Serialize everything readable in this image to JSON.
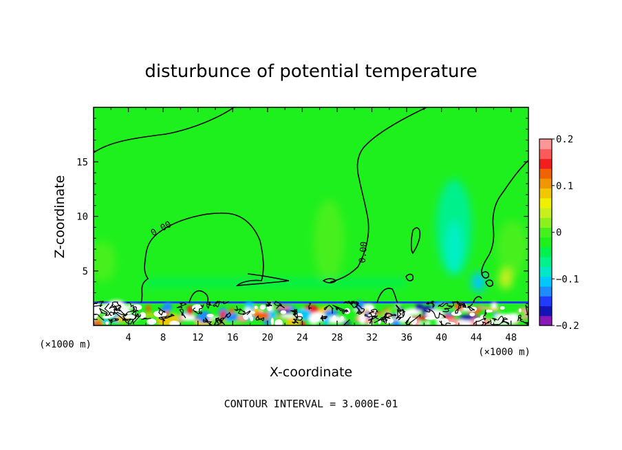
{
  "chart_data": {
    "type": "heatmap",
    "title": "disturbunce of potential temperature",
    "xlabel": "X-coordinate",
    "ylabel": "Z-coordinate",
    "x_unit": "(×1000 m)",
    "x_unit_right": "(×1000 m)",
    "xlim": [
      0,
      50
    ],
    "ylim": [
      0,
      20
    ],
    "x_ticks": [
      4,
      8,
      12,
      16,
      20,
      24,
      28,
      32,
      36,
      40,
      44,
      48
    ],
    "y_ticks": [
      5,
      10,
      15
    ],
    "colorbar": {
      "ticks": [
        "0.2",
        "0.1",
        "0",
        "−0.1",
        "−0.2"
      ],
      "tick_values": [
        0.2,
        0.1,
        0,
        -0.1,
        -0.2
      ],
      "range": [
        -0.2,
        0.2
      ],
      "colors_low_to_high": [
        "#8a18b8",
        "#1414b4",
        "#1e3cff",
        "#1e8cff",
        "#00c8ff",
        "#00e6c8",
        "#00f08c",
        "#00f050",
        "#1ef01e",
        "#46f01e",
        "#8cf01e",
        "#c8f01e",
        "#f0f000",
        "#f0c800",
        "#f09600",
        "#f06400",
        "#f01e1e",
        "#ff5a5a",
        "#ff9696"
      ]
    },
    "contour_labels": [
      "0.00",
      "0.00"
    ],
    "grid": false
  },
  "footer": {
    "contour_interval": "CONTOUR INTERVAL = 3.000E-01"
  }
}
